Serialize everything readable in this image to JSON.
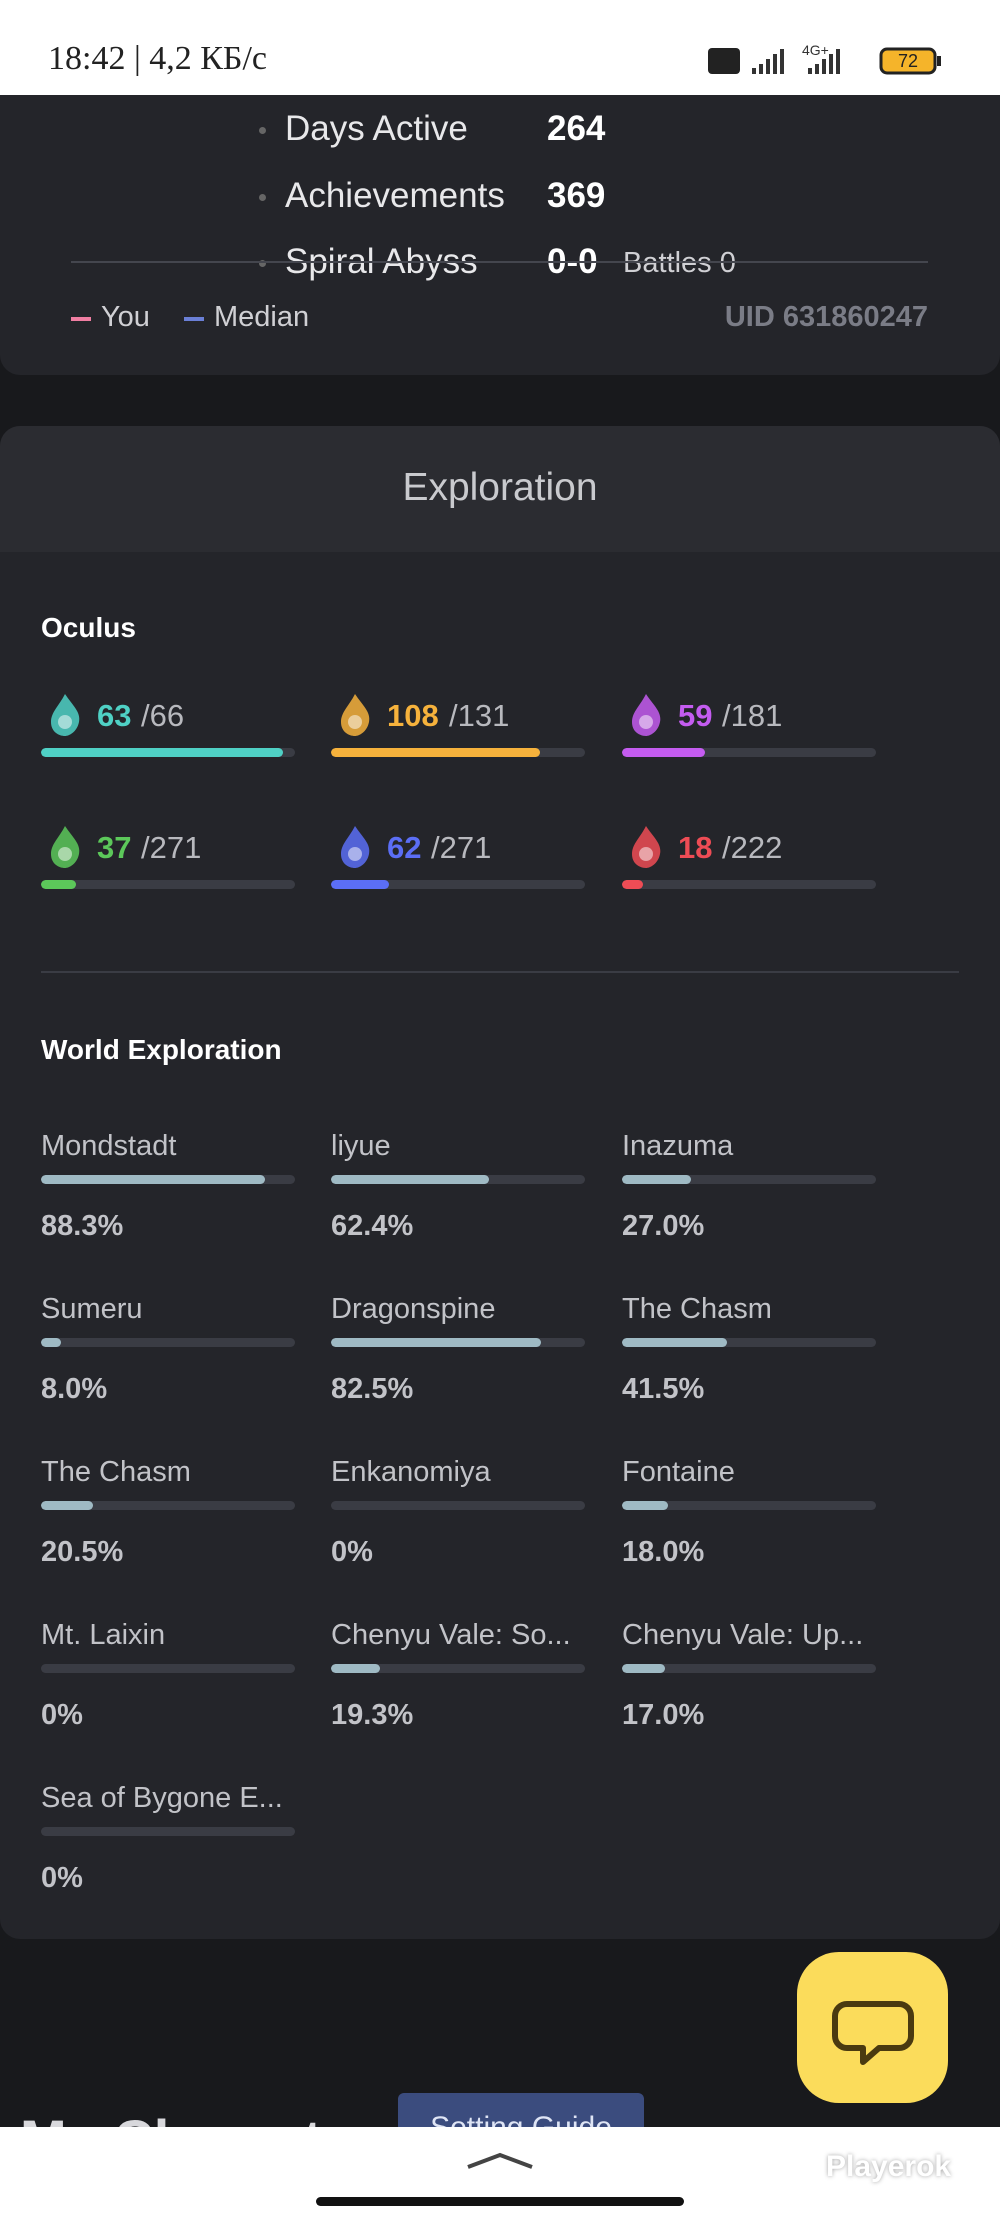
{
  "status_bar": {
    "time_speed": "18:42 | 4,2 КБ/с",
    "network": "4G+",
    "battery": "72"
  },
  "stats": [
    {
      "label": "Days Active",
      "value": "264"
    },
    {
      "label": "Achievements",
      "value": "369"
    },
    {
      "label": "Spiral Abyss",
      "value": "0-0",
      "extra": "Battles 0"
    }
  ],
  "legend": [
    "You",
    "Median"
  ],
  "uid": "UID 631860247",
  "exploration": {
    "title": "Exploration",
    "oculus_title": "Oculus",
    "oculus": [
      {
        "count": 63,
        "total": 66,
        "total_label": "/66",
        "color": "#4fd1c5"
      },
      {
        "count": 108,
        "total": 131,
        "total_label": "/131",
        "color": "#f6b23c"
      },
      {
        "count": 59,
        "total": 181,
        "total_label": "/181",
        "color": "#c45cf0"
      },
      {
        "count": 37,
        "total": 271,
        "total_label": "/271",
        "color": "#5cc85a"
      },
      {
        "count": 62,
        "total": 271,
        "total_label": "/271",
        "color": "#5b6ef5"
      },
      {
        "count": 18,
        "total": 222,
        "total_label": "/222",
        "color": "#ee4c55"
      }
    ],
    "world_title": "World Exploration",
    "regions": [
      {
        "name": "Mondstadt",
        "percent": 88.3,
        "label": "88.3%"
      },
      {
        "name": "liyue",
        "percent": 62.4,
        "label": "62.4%"
      },
      {
        "name": "Inazuma",
        "percent": 27.0,
        "label": "27.0%"
      },
      {
        "name": "Sumeru",
        "percent": 8.0,
        "label": "8.0%"
      },
      {
        "name": "Dragonspine",
        "percent": 82.5,
        "label": "82.5%"
      },
      {
        "name": "The Chasm",
        "percent": 41.5,
        "label": "41.5%"
      },
      {
        "name": "The Chasm",
        "percent": 20.5,
        "label": "20.5%"
      },
      {
        "name": "Enkanomiya",
        "percent": 0,
        "label": "0%"
      },
      {
        "name": "Fontaine",
        "percent": 18.0,
        "label": "18.0%"
      },
      {
        "name": "Mt. Laixin",
        "percent": 0,
        "label": "0%"
      },
      {
        "name": "Chenyu Vale: So...",
        "percent": 19.3,
        "label": "19.3%"
      },
      {
        "name": "Chenyu Vale: Up...",
        "percent": 17.0,
        "label": "17.0%"
      },
      {
        "name": "Sea of Bygone E...",
        "percent": 0,
        "label": "0%"
      }
    ]
  },
  "footer": {
    "heading": "My Characters",
    "button": "Setting Guide"
  },
  "watermark": "Playerok"
}
